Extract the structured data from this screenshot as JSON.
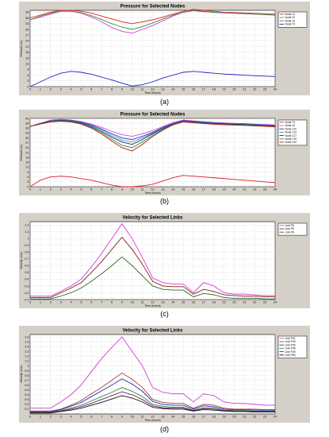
{
  "panels": [
    {
      "label": "(a)"
    },
    {
      "label": "(b)"
    },
    {
      "label": "(c)"
    },
    {
      "label": "(d)"
    }
  ],
  "chart_data": [
    {
      "type": "line",
      "title": "Pressure for Selected Nodes",
      "xlabel": "Time (hours)",
      "ylabel": "Pressure (m)",
      "xlim": [
        0,
        24
      ],
      "ylim": [
        0,
        40
      ],
      "xticks": [
        0,
        1,
        2,
        3,
        4,
        5,
        6,
        7,
        8,
        9,
        10,
        11,
        12,
        13,
        14,
        15,
        16,
        17,
        18,
        19,
        20,
        21,
        22,
        23,
        24
      ],
      "yticks": [
        0,
        3,
        6,
        9,
        12,
        15,
        18,
        21,
        24,
        27,
        30,
        33,
        36,
        39
      ],
      "grid": true,
      "legend_position": "top-right",
      "x": [
        0,
        1,
        2,
        3,
        4,
        5,
        6,
        7,
        8,
        9,
        10,
        11,
        12,
        13,
        14,
        15,
        16,
        17,
        18,
        19,
        20,
        21,
        22,
        23,
        24
      ],
      "series": [
        {
          "name": "Node J1",
          "color": "#e02020",
          "values": [
            36,
            37.5,
            39,
            40,
            40,
            39.5,
            38.5,
            37,
            35.5,
            34,
            33,
            34,
            35,
            36.5,
            38,
            39.5,
            40.5,
            40,
            39.5,
            39,
            38.8,
            38.6,
            38.4,
            38.2,
            38
          ]
        },
        {
          "name": "Node J2",
          "color": "#d040d0",
          "values": [
            35,
            36.5,
            38,
            39.5,
            39.5,
            38.5,
            36.5,
            34,
            31,
            29,
            28,
            30,
            32,
            34.5,
            37,
            39,
            40,
            39.5,
            39,
            38.8,
            38.5,
            38.3,
            38,
            37.8,
            37.5
          ]
        },
        {
          "name": "Node J3",
          "color": "#3a8a3a",
          "values": [
            35,
            37,
            38.5,
            39.5,
            39.5,
            38.8,
            37.2,
            35.2,
            33,
            31.2,
            30,
            31.5,
            33.3,
            35.5,
            37.5,
            39,
            39.8,
            39.3,
            38.9,
            38.6,
            38.4,
            38.2,
            38,
            37.8,
            37.5
          ]
        },
        {
          "name": "Node T1",
          "color": "#2020c0",
          "values": [
            0,
            2.5,
            5,
            7,
            8,
            7.5,
            6.5,
            5,
            3.5,
            1.8,
            0.3,
            1,
            2.5,
            4.5,
            6,
            7.5,
            8,
            7.5,
            7,
            6.6,
            6.3,
            6,
            5.7,
            5.5,
            5.3
          ]
        }
      ]
    },
    {
      "type": "line",
      "title": "Pressure for Selected Nodes",
      "xlabel": "Time (hours)",
      "ylabel": "Pressure (m)",
      "xlim": [
        0,
        24
      ],
      "ylim": [
        0,
        42
      ],
      "xticks": [
        0,
        1,
        2,
        3,
        4,
        5,
        6,
        7,
        8,
        9,
        10,
        11,
        12,
        13,
        14,
        15,
        16,
        17,
        18,
        19,
        20,
        21,
        22,
        23,
        24
      ],
      "yticks": [
        0,
        3,
        6,
        9,
        12,
        15,
        18,
        21,
        24,
        27,
        30,
        33,
        36,
        39,
        42
      ],
      "grid": true,
      "legend_position": "top-right",
      "x": [
        0,
        1,
        2,
        3,
        4,
        5,
        6,
        7,
        8,
        9,
        10,
        11,
        12,
        13,
        14,
        15,
        16,
        17,
        18,
        19,
        20,
        21,
        22,
        23,
        24
      ],
      "series": [
        {
          "name": "Node T1",
          "color": "#e02020",
          "values": [
            0,
            4,
            6,
            6.5,
            6,
            5,
            4,
            2.5,
            1,
            0,
            0,
            0.5,
            1.5,
            3.5,
            5.5,
            7,
            6.5,
            6,
            5.5,
            5,
            4.5,
            4,
            3.5,
            3,
            2.5
          ]
        },
        {
          "name": "Node J2",
          "color": "#e040e0",
          "values": [
            37,
            39,
            41,
            41.5,
            41,
            40,
            38.5,
            36.5,
            34,
            32,
            31,
            32.5,
            34.5,
            37,
            39.5,
            41,
            40.5,
            40,
            39.5,
            39.2,
            39,
            38.8,
            38.5,
            38.2,
            38
          ]
        },
        {
          "name": "Node J10",
          "color": "#2040c0",
          "values": [
            37,
            39,
            40.5,
            41,
            40.8,
            39.8,
            38,
            35.5,
            32.5,
            30,
            29,
            31,
            33.5,
            36.5,
            39,
            40.7,
            40.2,
            39.7,
            39.3,
            39,
            38.8,
            38.6,
            38.3,
            38,
            37.8
          ]
        },
        {
          "name": "Node J12",
          "color": "#40a0a0",
          "values": [
            37,
            39,
            40.5,
            41,
            40.6,
            39.5,
            37.5,
            34.8,
            31.5,
            28.8,
            27.5,
            30,
            33,
            36,
            38.8,
            40.5,
            40,
            39.5,
            39.1,
            38.8,
            38.6,
            38.4,
            38.1,
            37.8,
            37.5
          ]
        },
        {
          "name": "Node J17",
          "color": "#202080",
          "values": [
            37,
            38.8,
            40.3,
            40.8,
            40.3,
            39.2,
            37,
            34,
            30.5,
            27.5,
            26,
            29,
            32.5,
            35.8,
            38.6,
            40.3,
            39.8,
            39.3,
            38.9,
            38.6,
            38.4,
            38.2,
            37.9,
            37.6,
            37.3
          ]
        },
        {
          "name": "Node J19",
          "color": "#3a8a3a",
          "values": [
            37,
            38.6,
            40,
            40.5,
            40,
            38.8,
            36.5,
            33.2,
            29.2,
            25.5,
            24,
            27.5,
            31.5,
            35.2,
            38.3,
            40,
            39.5,
            39,
            38.6,
            38.3,
            38.1,
            37.9,
            37.6,
            37.3,
            37
          ]
        },
        {
          "name": "Node J20",
          "color": "#b02020",
          "values": [
            37,
            38.5,
            39.8,
            40.2,
            39.8,
            38.5,
            36,
            32.5,
            28,
            24,
            22,
            26,
            30.8,
            34.8,
            38,
            39.8,
            39.3,
            38.8,
            38.4,
            38.1,
            37.9,
            37.7,
            37.4,
            37.1,
            36.8
          ]
        }
      ]
    },
    {
      "type": "line",
      "title": "Velocity for Selected Links",
      "xlabel": "Time (hours)",
      "ylabel": "Velocity (m/s)",
      "xlim": [
        0,
        24
      ],
      "ylim": [
        0.1,
        1.25
      ],
      "xticks": [
        0,
        1,
        2,
        3,
        4,
        5,
        6,
        7,
        8,
        9,
        10,
        11,
        12,
        13,
        14,
        15,
        16,
        17,
        18,
        19,
        20,
        21,
        22,
        23,
        24
      ],
      "yticks": [
        0.1,
        0.2,
        0.3,
        0.4,
        0.5,
        0.6,
        0.7,
        0.8,
        0.9,
        1.0,
        1.1,
        1.2
      ],
      "grid": true,
      "legend_position": "top-right",
      "x": [
        0,
        1,
        2,
        3,
        4,
        5,
        6,
        7,
        8,
        9,
        10,
        11,
        12,
        13,
        14,
        15,
        16,
        17,
        18,
        19,
        20,
        21,
        22,
        23,
        24
      ],
      "series": [
        {
          "name": "Link P6",
          "color": "#d040d0",
          "values": [
            0.15,
            0.15,
            0.15,
            0.22,
            0.3,
            0.4,
            0.58,
            0.78,
            1.0,
            1.22,
            1.0,
            0.72,
            0.42,
            0.35,
            0.33,
            0.33,
            0.2,
            0.35,
            0.3,
            0.2,
            0.18,
            0.18,
            0.17,
            0.16,
            0.16
          ]
        },
        {
          "name": "Link P8",
          "color": "#8b2020",
          "values": [
            0.13,
            0.13,
            0.13,
            0.2,
            0.27,
            0.35,
            0.5,
            0.66,
            0.84,
            1.02,
            0.84,
            0.62,
            0.37,
            0.3,
            0.29,
            0.29,
            0.18,
            0.25,
            0.22,
            0.17,
            0.16,
            0.15,
            0.15,
            0.14,
            0.14
          ]
        },
        {
          "name": "Link P9",
          "color": "#2a6a2a",
          "values": [
            0.11,
            0.11,
            0.11,
            0.15,
            0.2,
            0.27,
            0.37,
            0.48,
            0.6,
            0.73,
            0.6,
            0.45,
            0.3,
            0.25,
            0.24,
            0.24,
            0.14,
            0.19,
            0.17,
            0.13,
            0.12,
            0.12,
            0.12,
            0.11,
            0.11
          ]
        }
      ]
    },
    {
      "type": "line",
      "title": "Velocity for Selected Links",
      "xlabel": "Time (hours)",
      "ylabel": "Velocity (m/s)",
      "xlim": [
        0,
        24
      ],
      "ylim": [
        0,
        1.65
      ],
      "xticks": [
        0,
        1,
        2,
        3,
        4,
        5,
        6,
        7,
        8,
        9,
        10,
        11,
        12,
        13,
        14,
        15,
        16,
        17,
        18,
        19,
        20,
        21,
        22,
        23,
        24
      ],
      "yticks": [
        0.1,
        0.2,
        0.3,
        0.4,
        0.5,
        0.6,
        0.7,
        0.8,
        0.9,
        1.0,
        1.1,
        1.2,
        1.3,
        1.4,
        1.5,
        1.6
      ],
      "grid": true,
      "legend_position": "top-right",
      "x": [
        0,
        1,
        2,
        3,
        4,
        5,
        6,
        7,
        8,
        9,
        10,
        11,
        12,
        13,
        14,
        15,
        16,
        17,
        18,
        19,
        20,
        21,
        22,
        23,
        24
      ],
      "series": [
        {
          "name": "Link P41",
          "color": "#d040d0",
          "values": [
            0.12,
            0.12,
            0.12,
            0.25,
            0.4,
            0.6,
            0.88,
            1.15,
            1.38,
            1.6,
            1.3,
            1.0,
            0.55,
            0.45,
            0.42,
            0.42,
            0.25,
            0.42,
            0.38,
            0.25,
            0.22,
            0.22,
            0.2,
            0.18,
            0.18
          ]
        },
        {
          "name": "Link P43",
          "color": "#b04040",
          "values": [
            0.06,
            0.06,
            0.06,
            0.1,
            0.18,
            0.28,
            0.42,
            0.55,
            0.7,
            0.85,
            0.72,
            0.55,
            0.3,
            0.24,
            0.22,
            0.22,
            0.12,
            0.2,
            0.18,
            0.12,
            0.1,
            0.1,
            0.1,
            0.09,
            0.09
          ]
        },
        {
          "name": "Link P44",
          "color": "#2030c0",
          "values": [
            0.05,
            0.05,
            0.05,
            0.09,
            0.16,
            0.24,
            0.36,
            0.48,
            0.6,
            0.73,
            0.62,
            0.47,
            0.26,
            0.2,
            0.18,
            0.18,
            0.1,
            0.17,
            0.15,
            0.1,
            0.09,
            0.09,
            0.08,
            0.08,
            0.08
          ]
        },
        {
          "name": "Link P45",
          "color": "#3a8a3a",
          "values": [
            0.04,
            0.04,
            0.04,
            0.07,
            0.12,
            0.18,
            0.27,
            0.36,
            0.45,
            0.55,
            0.47,
            0.36,
            0.2,
            0.16,
            0.14,
            0.14,
            0.08,
            0.13,
            0.12,
            0.08,
            0.07,
            0.07,
            0.06,
            0.06,
            0.06
          ]
        },
        {
          "name": "Link P49",
          "color": "#702070",
          "values": [
            0.03,
            0.03,
            0.03,
            0.06,
            0.1,
            0.15,
            0.22,
            0.3,
            0.38,
            0.46,
            0.4,
            0.3,
            0.17,
            0.13,
            0.12,
            0.12,
            0.07,
            0.11,
            0.1,
            0.07,
            0.06,
            0.06,
            0.05,
            0.05,
            0.05
          ]
        },
        {
          "name": "Link P50",
          "color": "#101010",
          "values": [
            0.02,
            0.02,
            0.02,
            0.05,
            0.08,
            0.12,
            0.18,
            0.24,
            0.31,
            0.38,
            0.33,
            0.25,
            0.14,
            0.11,
            0.1,
            0.1,
            0.06,
            0.09,
            0.08,
            0.06,
            0.05,
            0.05,
            0.04,
            0.04,
            0.04
          ]
        }
      ]
    }
  ]
}
